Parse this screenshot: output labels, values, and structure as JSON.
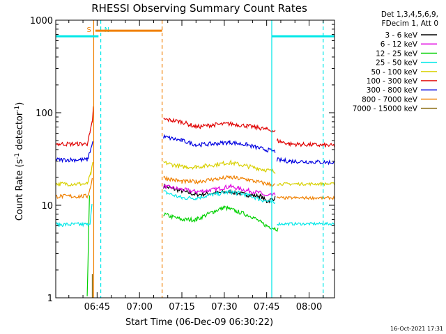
{
  "chart_data": {
    "type": "line",
    "title": "RHESSI Observing Summary Count Rates",
    "xlabel": "Start Time (06-Dec-09 06:30:22)",
    "ylabel": "Count Rate (s",
    "ylabel_sup": "-1",
    "ylabel_rest": " detector",
    "ylabel_sup2": "-1",
    "ylabel_close": ")",
    "ylog": true,
    "ylim": [
      1,
      1000
    ],
    "xlim_min": [
      390.37,
      489.0
    ],
    "x_ticks": [
      {
        "v": 405,
        "label": "06:45"
      },
      {
        "v": 420,
        "label": "07:00"
      },
      {
        "v": 435,
        "label": "07:15"
      },
      {
        "v": 450,
        "label": "07:30"
      },
      {
        "v": 465,
        "label": "07:45"
      },
      {
        "v": 480,
        "label": "08:00"
      }
    ],
    "y_ticks": [
      {
        "v": 1,
        "label": "1"
      },
      {
        "v": 10,
        "label": "10"
      },
      {
        "v": 100,
        "label": "100"
      },
      {
        "v": 1000,
        "label": "1000"
      }
    ],
    "legend_header": [
      "Det 1,3,4,5,6,9,",
      "FDecim 1, Att 0"
    ],
    "legend_position": "right",
    "series": [
      {
        "name": "3 - 6 keV",
        "color": "#000000",
        "before": 0,
        "after": 0,
        "segments": [
          [
            [
              428.5,
              16
            ],
            [
              440,
              13
            ],
            [
              452,
              14
            ],
            [
              458,
              13
            ],
            [
              463,
              12.5
            ],
            [
              465,
              11
            ],
            [
              468,
              12
            ]
          ]
        ]
      },
      {
        "name": "6 - 12 keV",
        "color": "#e000e0",
        "before": 0,
        "after": 0,
        "segments": [
          [
            [
              428.5,
              16
            ],
            [
              440,
              14
            ],
            [
              445,
              14.5
            ],
            [
              452,
              16
            ],
            [
              458,
              14.5
            ],
            [
              463,
              13.5
            ],
            [
              465,
              12.5
            ],
            [
              468,
              13
            ]
          ]
        ]
      },
      {
        "name": "12 - 25 keV",
        "color": "#00d000",
        "before": 0,
        "after": 0,
        "segments": [
          [
            [
              428.5,
              8
            ],
            [
              435,
              7
            ],
            [
              440,
              7
            ],
            [
              446,
              8.5
            ],
            [
              450,
              9.5
            ],
            [
              455,
              8.5
            ],
            [
              460,
              7.5
            ],
            [
              463,
              6.5
            ],
            [
              465,
              6
            ],
            [
              469,
              5.5
            ]
          ],
          [
            [
              401.5,
              1
            ],
            [
              402.3,
              13
            ]
          ]
        ]
      },
      {
        "name": "25 - 50 keV",
        "color": "#00e8e8",
        "before": 6.2,
        "after": 6.3,
        "segments": [
          [
            [
              390.37,
              6.2
            ],
            [
              401.5,
              6.2
            ],
            [
              402.5,
              6.5
            ],
            [
              403.2,
              10
            ]
          ],
          [
            [
              428.5,
              14
            ],
            [
              435,
              12
            ],
            [
              440,
              12
            ],
            [
              446,
              13
            ],
            [
              452,
              14
            ],
            [
              458,
              13
            ],
            [
              463,
              11.5
            ],
            [
              468,
              10.5
            ]
          ],
          [
            [
              468.6,
              6.3
            ],
            [
              489,
              6.3
            ]
          ]
        ]
      },
      {
        "name": "50 - 100 keV",
        "color": "#d8d000",
        "before": 17,
        "after": 17,
        "segments": [
          [
            [
              390.37,
              17
            ],
            [
              401.5,
              17
            ],
            [
              402.8,
              22
            ],
            [
              403.5,
              28
            ]
          ],
          [
            [
              428.5,
              29
            ],
            [
              435,
              26
            ],
            [
              440,
              26
            ],
            [
              445,
              27
            ],
            [
              452,
              29
            ],
            [
              458,
              26.5
            ],
            [
              465,
              24
            ],
            [
              468,
              23
            ]
          ],
          [
            [
              468.6,
              17
            ],
            [
              489,
              17
            ]
          ]
        ]
      },
      {
        "name": "100 - 300 keV",
        "color": "#e00000",
        "before": 46,
        "after": 44,
        "segments": [
          [
            [
              390.37,
              46
            ],
            [
              401.5,
              46
            ],
            [
              402.5,
              60
            ],
            [
              403.3,
              80
            ],
            [
              403.7,
              115
            ]
          ],
          [
            [
              428.5,
              85
            ],
            [
              435,
              80
            ],
            [
              440,
              70
            ],
            [
              446,
              74
            ],
            [
              452,
              76
            ],
            [
              458,
              72
            ],
            [
              463,
              68
            ],
            [
              468,
              63
            ]
          ],
          [
            [
              468.6,
              50
            ],
            [
              473,
              46
            ],
            [
              489,
              44
            ]
          ]
        ]
      },
      {
        "name": "300 - 800 keV",
        "color": "#0000e0",
        "before": 31,
        "after": 29,
        "segments": [
          [
            [
              390.37,
              31
            ],
            [
              401.5,
              31
            ],
            [
              402.5,
              38
            ],
            [
              403.5,
              48
            ]
          ],
          [
            [
              428.5,
              55
            ],
            [
              435,
              50
            ],
            [
              440,
              45
            ],
            [
              446,
              46
            ],
            [
              452,
              48
            ],
            [
              458,
              45
            ],
            [
              463,
              41
            ],
            [
              468,
              38
            ]
          ],
          [
            [
              468.6,
              31
            ],
            [
              473,
              30
            ],
            [
              489,
              29
            ]
          ]
        ]
      },
      {
        "name": "800 - 7000 keV",
        "color": "#f08000",
        "before": 12.5,
        "after": 12,
        "segments": [
          [
            [
              390.37,
              12.5
            ],
            [
              401.5,
              12.5
            ],
            [
              402.5,
              15
            ],
            [
              403.3,
              20
            ]
          ],
          [
            [
              428.5,
              20
            ],
            [
              435,
              18
            ],
            [
              440,
              18
            ],
            [
              446,
              19
            ],
            [
              452,
              20
            ],
            [
              458,
              19
            ],
            [
              465,
              17
            ],
            [
              468,
              16.5
            ]
          ],
          [
            [
              468.6,
              12
            ],
            [
              489,
              12
            ]
          ]
        ]
      },
      {
        "name": "7000 - 15000 keV",
        "color": "#806000",
        "before": 0,
        "after": 0,
        "segments": [
          [
            [
              403.3,
              1
            ],
            [
              403.3,
              1.8
            ]
          ]
        ]
      }
    ],
    "markers": [
      {
        "kind": "solid",
        "x": 403.8,
        "color": "#f08000",
        "label": "S"
      },
      {
        "kind": "dashed",
        "x": 428.0,
        "color": "#f08000",
        "label": ""
      },
      {
        "kind": "solid",
        "x": 466.8,
        "color": "#00e8e8",
        "label": ""
      },
      {
        "kind": "dashed",
        "x": 406.3,
        "color": "#00e8e8",
        "label": "N"
      },
      {
        "kind": "dashed",
        "x": 485.0,
        "color": "#00e8e8",
        "label": ""
      }
    ],
    "bars": [
      {
        "color": "#f08000",
        "x0": 404.4,
        "x1": 428.0,
        "y": 770
      },
      {
        "color": "#00e8e8",
        "x0": 390.37,
        "x1": 405.5,
        "y": 670
      },
      {
        "color": "#00e8e8",
        "x0": 466.8,
        "x1": 489.0,
        "y": 670
      }
    ],
    "timestamp": "16-Oct-2021 17:31"
  }
}
